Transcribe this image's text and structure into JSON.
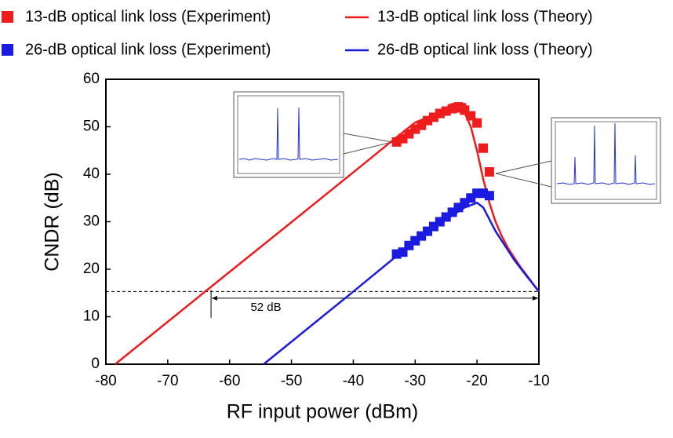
{
  "chart_data": {
    "type": "line",
    "x_label": "RF input power (dBm)",
    "y_label": "CNDR (dB)",
    "xlim": [
      -80,
      -10
    ],
    "ylim": [
      0,
      60
    ],
    "xticks": [
      -80,
      -70,
      -60,
      -50,
      -40,
      -30,
      -20,
      -10
    ],
    "yticks": [
      0,
      10,
      20,
      30,
      40,
      50,
      60
    ],
    "grid": false,
    "legend_position": "top",
    "series": [
      {
        "name": "13-dB optical link loss (Experiment)",
        "color": "#ee1c1c",
        "style": "square",
        "x": [
          -33,
          -32,
          -31,
          -30,
          -29,
          -28,
          -27,
          -26,
          -25,
          -24,
          -23.5,
          -23,
          -22.5,
          -22,
          -21,
          -20,
          -19,
          -18
        ],
        "values": [
          46.8,
          47.5,
          48.5,
          49.5,
          50.3,
          51.3,
          52,
          52.8,
          53.3,
          53.8,
          54,
          54.2,
          54,
          53.5,
          52.3,
          50.8,
          45.5,
          40.5
        ]
      },
      {
        "name": "26-dB optical link loss (Experiment)",
        "color": "#1a1ae0",
        "style": "square",
        "x": [
          -33,
          -32,
          -31,
          -30,
          -29,
          -28,
          -27,
          -26,
          -25,
          -24,
          -23,
          -22,
          -21,
          -20,
          -19,
          -18
        ],
        "values": [
          23.2,
          23.6,
          25,
          26,
          27,
          28,
          29,
          30,
          31,
          32,
          33,
          34,
          35,
          36,
          36,
          35.5
        ]
      },
      {
        "name": "13-dB optical link loss (Theory)",
        "color": "#ee1c1c",
        "style": "line",
        "x": [
          -78.5,
          -63,
          -50,
          -40,
          -33,
          -30,
          -27,
          -25,
          -23,
          -22,
          -21,
          -20,
          -19,
          -18,
          -17,
          -16,
          -15,
          -14,
          -13,
          -12,
          -11,
          -10
        ],
        "values": [
          0,
          16.3,
          29.9,
          40.4,
          47.8,
          50.9,
          52.5,
          53.8,
          54,
          53,
          50,
          45,
          39,
          34,
          30,
          27,
          24.5,
          22.5,
          20.5,
          18.8,
          17,
          15.3
        ]
      },
      {
        "name": "26-dB optical link loss (Theory)",
        "color": "#1a1ae0",
        "style": "line",
        "x": [
          -54.5,
          -40,
          -30,
          -25,
          -22,
          -20,
          -19,
          -18,
          -17,
          -16,
          -15,
          -14,
          -13,
          -12,
          -11,
          -10
        ],
        "values": [
          0,
          15.3,
          26,
          30.5,
          33,
          34,
          33,
          30.5,
          28,
          26,
          24,
          22,
          20.3,
          18.6,
          17,
          15.3
        ]
      }
    ],
    "reference_line": 15.3,
    "annotation": {
      "text": "52 dB",
      "x": [
        -63,
        -10
      ],
      "y": 13.9
    }
  }
}
